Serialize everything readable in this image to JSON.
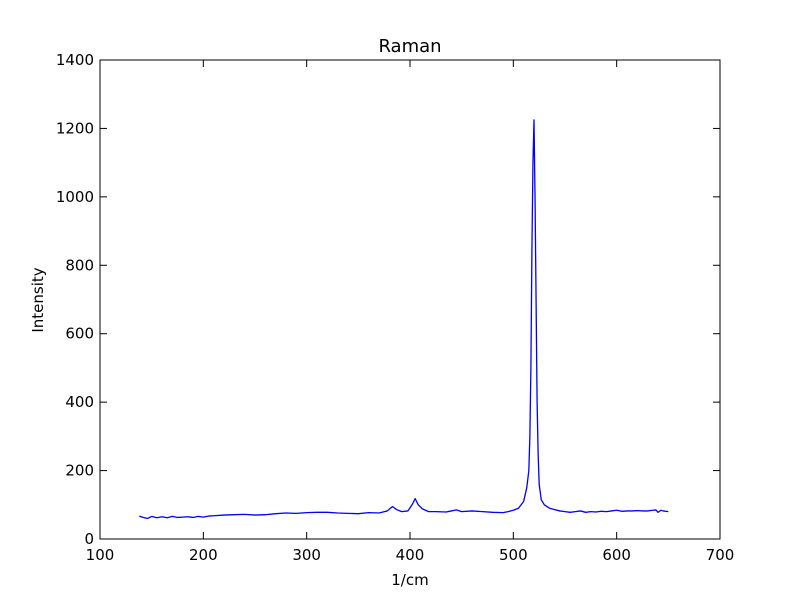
{
  "chart_data": {
    "type": "line",
    "title": "Raman",
    "xlabel": "1/cm",
    "ylabel": "Intensity",
    "xlim": [
      100,
      700
    ],
    "ylim": [
      0,
      1400
    ],
    "xticks": [
      100,
      200,
      300,
      400,
      500,
      600,
      700
    ],
    "yticks": [
      0,
      200,
      400,
      600,
      800,
      1000,
      1200,
      1400
    ],
    "grid": false,
    "series": [
      {
        "color": "#0000ff",
        "x": [
          138,
          142,
          146,
          150,
          155,
          160,
          165,
          170,
          175,
          180,
          185,
          190,
          195,
          200,
          205,
          210,
          220,
          230,
          240,
          250,
          260,
          270,
          280,
          290,
          300,
          310,
          320,
          330,
          340,
          350,
          360,
          370,
          378,
          383,
          387,
          392,
          398,
          402,
          405,
          408,
          412,
          418,
          425,
          435,
          440,
          445,
          450,
          460,
          470,
          480,
          490,
          495,
          500,
          505,
          510,
          513,
          515,
          516,
          517,
          518,
          519,
          520,
          521,
          522,
          523,
          524,
          525,
          527,
          530,
          535,
          540,
          545,
          550,
          555,
          560,
          565,
          570,
          575,
          580,
          585,
          590,
          595,
          600,
          605,
          610,
          615,
          620,
          625,
          630,
          635,
          638,
          640,
          643,
          645,
          650
        ],
        "y": [
          67,
          63,
          60,
          66,
          62,
          65,
          62,
          66,
          63,
          64,
          65,
          63,
          66,
          64,
          67,
          68,
          70,
          71,
          72,
          70,
          71,
          74,
          76,
          75,
          77,
          78,
          78,
          76,
          75,
          74,
          77,
          76,
          82,
          95,
          86,
          80,
          82,
          100,
          118,
          100,
          88,
          80,
          80,
          79,
          82,
          85,
          80,
          82,
          80,
          78,
          77,
          80,
          84,
          90,
          110,
          150,
          200,
          300,
          500,
          850,
          1100,
          1225,
          1000,
          700,
          400,
          250,
          160,
          115,
          100,
          90,
          86,
          82,
          80,
          78,
          80,
          82,
          78,
          80,
          79,
          81,
          80,
          82,
          84,
          81,
          82,
          82,
          83,
          82,
          82,
          84,
          85,
          78,
          84,
          82,
          80
        ]
      }
    ]
  }
}
